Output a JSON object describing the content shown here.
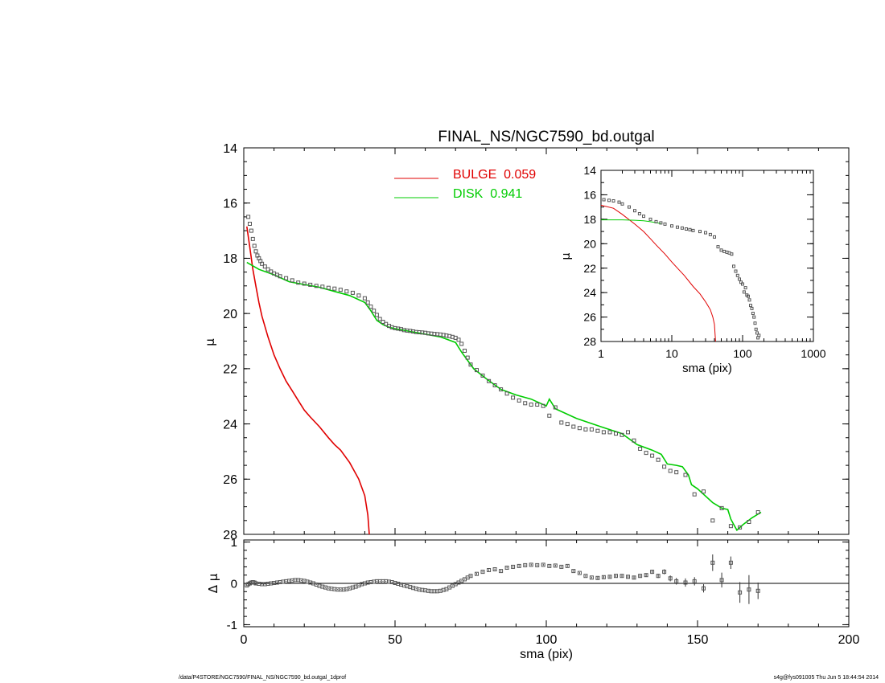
{
  "chart_data": [
    {
      "type": "scatter",
      "title": "FINAL_NS/NGC7590_bd.outgal",
      "xlabel": "",
      "ylabel": "μ",
      "xlim": [
        0,
        200
      ],
      "ylim": [
        28,
        14
      ],
      "xticks": [
        0,
        50,
        100,
        150,
        200
      ],
      "yticks": [
        14,
        16,
        18,
        20,
        22,
        24,
        26,
        28
      ],
      "legend_position": "top-center",
      "series": [
        {
          "name": "BULGE  0.059",
          "kind": "line",
          "color": "#e00000",
          "x": [
            1,
            2,
            3,
            4,
            5,
            6,
            8,
            10,
            12,
            14,
            16,
            18,
            20,
            22,
            25,
            28,
            30,
            32,
            35,
            38,
            40,
            41,
            41.5
          ],
          "y": [
            16.85,
            17.6,
            18.4,
            19.0,
            19.6,
            20.1,
            20.85,
            21.5,
            22.0,
            22.45,
            22.8,
            23.15,
            23.5,
            23.75,
            24.1,
            24.5,
            24.75,
            24.95,
            25.4,
            26.0,
            26.6,
            27.3,
            28.0
          ]
        },
        {
          "name": "DISK  0.941",
          "kind": "line",
          "color": "#00cc00",
          "x": [
            1,
            5,
            10,
            15,
            20,
            25,
            30,
            35,
            40,
            42,
            44,
            46,
            48,
            50,
            55,
            60,
            65,
            70,
            72,
            74,
            76,
            80,
            85,
            90,
            95,
            100,
            101,
            103,
            110,
            118,
            125,
            130,
            135,
            138,
            140,
            143,
            145,
            147,
            148,
            150,
            155,
            158,
            160,
            161,
            162,
            163,
            165,
            168,
            171
          ],
          "y": [
            18.15,
            18.4,
            18.6,
            18.85,
            18.95,
            19.05,
            19.2,
            19.35,
            19.6,
            19.9,
            20.25,
            20.4,
            20.5,
            20.55,
            20.65,
            20.75,
            20.85,
            21.05,
            21.4,
            21.7,
            22.0,
            22.35,
            22.75,
            22.95,
            23.1,
            23.35,
            23.1,
            23.45,
            23.8,
            24.1,
            24.35,
            24.75,
            24.95,
            25.1,
            25.45,
            25.5,
            25.55,
            25.85,
            26.2,
            26.35,
            26.85,
            27.05,
            27.1,
            27.45,
            27.65,
            27.85,
            27.65,
            27.4,
            27.2
          ]
        },
        {
          "name": "",
          "kind": "markers",
          "color": "#555555",
          "x": [
            1.5,
            2,
            2.5,
            3,
            3.5,
            4,
            4.5,
            5,
            5.5,
            6,
            7,
            8,
            9,
            10,
            11,
            12,
            14,
            16,
            18,
            20,
            22,
            24,
            26,
            28,
            30,
            32,
            34,
            36,
            38,
            40,
            41,
            42,
            43,
            44,
            45,
            46,
            47,
            48,
            49,
            50,
            51,
            52,
            53,
            54,
            55,
            56,
            57,
            58,
            59,
            60,
            61,
            62,
            63,
            64,
            65,
            66,
            67,
            68,
            69,
            70,
            71,
            72,
            73,
            74,
            75,
            77,
            79,
            81,
            83,
            85,
            87,
            89,
            91,
            93,
            95,
            97,
            99,
            101,
            103,
            105,
            107,
            109,
            111,
            113,
            115,
            117,
            119,
            121,
            123,
            125,
            127,
            129,
            131,
            133,
            135,
            137,
            139,
            141,
            143,
            146,
            149,
            152,
            155,
            158,
            161,
            164,
            167,
            170
          ],
          "y": [
            16.5,
            16.75,
            17.0,
            17.3,
            17.55,
            17.75,
            17.9,
            18.0,
            18.1,
            18.2,
            18.3,
            18.4,
            18.48,
            18.55,
            18.6,
            18.65,
            18.72,
            18.8,
            18.88,
            18.92,
            18.96,
            19.0,
            19.03,
            19.07,
            19.1,
            19.14,
            19.2,
            19.25,
            19.35,
            19.45,
            19.6,
            19.75,
            19.9,
            20.05,
            20.2,
            20.3,
            20.38,
            20.45,
            20.5,
            20.53,
            20.55,
            20.57,
            20.6,
            20.62,
            20.63,
            20.65,
            20.67,
            20.68,
            20.69,
            20.7,
            20.72,
            20.73,
            20.74,
            20.75,
            20.76,
            20.78,
            20.8,
            20.82,
            20.85,
            20.88,
            20.95,
            21.1,
            21.35,
            21.6,
            21.85,
            22.05,
            22.25,
            22.45,
            22.6,
            22.75,
            22.9,
            23.05,
            23.15,
            23.25,
            23.3,
            23.3,
            23.35,
            23.7,
            23.4,
            23.95,
            24.0,
            24.1,
            24.15,
            24.2,
            24.2,
            24.25,
            24.3,
            24.3,
            24.35,
            24.4,
            24.3,
            24.6,
            24.9,
            25.05,
            25.15,
            25.3,
            25.55,
            25.7,
            25.75,
            25.85,
            26.55,
            26.45,
            27.5,
            27.05,
            27.7,
            27.75,
            27.55,
            27.2
          ]
        }
      ]
    },
    {
      "type": "scatter",
      "title": "",
      "xlabel": "sma (pix)",
      "ylabel": "μ",
      "xscale": "log",
      "xlim": [
        1,
        1000
      ],
      "ylim": [
        28,
        14
      ],
      "xticks": [
        1,
        10,
        100,
        1000
      ],
      "yticks": [
        14,
        16,
        18,
        20,
        22,
        24,
        26,
        28
      ],
      "series": [
        {
          "name": "",
          "kind": "line",
          "color": "#e00000",
          "x": [
            1,
            1.5,
            2,
            3,
            4,
            5,
            6,
            8,
            10,
            12,
            15,
            20,
            25,
            28,
            30,
            35,
            38,
            40,
            41.5
          ],
          "y": [
            16.85,
            17.1,
            17.6,
            18.4,
            19.0,
            19.6,
            20.1,
            20.85,
            21.5,
            22.0,
            22.6,
            23.5,
            24.1,
            24.5,
            24.75,
            25.4,
            26.0,
            26.6,
            28.0
          ]
        },
        {
          "name": "",
          "kind": "line",
          "color": "#00cc00",
          "x": [
            1,
            2,
            3,
            4,
            5,
            7
          ],
          "y": [
            18.05,
            18.05,
            18.08,
            18.12,
            18.2,
            18.35
          ]
        },
        {
          "name": "",
          "kind": "markers",
          "color": "#555555",
          "x": [
            1.1,
            1.3,
            1.5,
            1.8,
            2,
            2.5,
            3,
            3.5,
            4,
            5,
            6,
            7,
            8,
            10,
            12,
            14,
            16,
            18,
            20,
            25,
            30,
            35,
            40,
            45,
            50,
            55,
            60,
            65,
            70,
            75,
            80,
            85,
            90,
            95,
            100,
            105,
            110,
            115,
            120,
            125,
            130,
            135,
            140,
            145,
            150,
            155,
            160,
            165,
            170
          ],
          "y": [
            16.4,
            16.45,
            16.5,
            16.6,
            16.75,
            17.0,
            17.3,
            17.55,
            17.75,
            18.0,
            18.2,
            18.3,
            18.4,
            18.55,
            18.65,
            18.72,
            18.8,
            18.85,
            18.92,
            19.0,
            19.1,
            19.25,
            19.45,
            20.25,
            20.53,
            20.63,
            20.7,
            20.76,
            20.85,
            21.85,
            22.25,
            22.6,
            22.9,
            23.15,
            23.3,
            23.95,
            23.6,
            24.2,
            24.3,
            24.6,
            25.05,
            25.3,
            25.7,
            26.0,
            26.5,
            27.0,
            27.3,
            27.7,
            27.5
          ]
        }
      ]
    },
    {
      "type": "scatter",
      "title": "",
      "xlabel": "sma (pix)",
      "ylabel": "Δ μ",
      "xlim": [
        0,
        200
      ],
      "ylim": [
        -1.05,
        1.05
      ],
      "xticks": [
        0,
        50,
        100,
        150,
        200
      ],
      "yticks": [
        -1,
        0,
        1
      ],
      "reference_line": 0,
      "series": [
        {
          "name": "",
          "kind": "markers_with_errors",
          "color": "#555555",
          "x": [
            1,
            1.5,
            2,
            2.5,
            3,
            3.5,
            4,
            5,
            6,
            7,
            8,
            9,
            10,
            11,
            12,
            13,
            14,
            15,
            16,
            17,
            18,
            19,
            20,
            21,
            22,
            23,
            24,
            25,
            26,
            27,
            28,
            29,
            30,
            31,
            32,
            33,
            34,
            35,
            36,
            37,
            38,
            39,
            40,
            41,
            42,
            43,
            44,
            45,
            46,
            47,
            48,
            49,
            50,
            51,
            52,
            53,
            54,
            55,
            56,
            57,
            58,
            59,
            60,
            61,
            62,
            63,
            64,
            65,
            66,
            67,
            68,
            69,
            70,
            71,
            72,
            73,
            74,
            75,
            77,
            79,
            81,
            83,
            85,
            87,
            89,
            91,
            93,
            95,
            97,
            99,
            101,
            103,
            105,
            107,
            109,
            111,
            113,
            115,
            117,
            119,
            121,
            123,
            125,
            127,
            129,
            131,
            133,
            135,
            137,
            139,
            141,
            143,
            146,
            149,
            152,
            155,
            158,
            161,
            164,
            167,
            170
          ],
          "y": [
            -0.05,
            -0.02,
            0.0,
            0.02,
            0.03,
            0.02,
            0.0,
            -0.01,
            -0.02,
            -0.02,
            -0.01,
            0.0,
            0.01,
            0.02,
            0.03,
            0.04,
            0.05,
            0.06,
            0.07,
            0.08,
            0.08,
            0.07,
            0.06,
            0.04,
            0.02,
            0.0,
            -0.03,
            -0.06,
            -0.08,
            -0.1,
            -0.12,
            -0.13,
            -0.14,
            -0.15,
            -0.15,
            -0.15,
            -0.14,
            -0.12,
            -0.1,
            -0.08,
            -0.05,
            -0.02,
            0.0,
            0.02,
            0.03,
            0.04,
            0.05,
            0.05,
            0.05,
            0.05,
            0.04,
            0.03,
            0.01,
            -0.01,
            -0.03,
            -0.05,
            -0.07,
            -0.09,
            -0.11,
            -0.13,
            -0.15,
            -0.16,
            -0.17,
            -0.18,
            -0.19,
            -0.19,
            -0.19,
            -0.18,
            -0.16,
            -0.14,
            -0.1,
            -0.06,
            -0.02,
            0.02,
            0.06,
            0.1,
            0.14,
            0.18,
            0.23,
            0.28,
            0.32,
            0.34,
            0.3,
            0.38,
            0.4,
            0.42,
            0.44,
            0.45,
            0.44,
            0.45,
            0.42,
            0.43,
            0.4,
            0.42,
            0.3,
            0.25,
            0.18,
            0.14,
            0.13,
            0.15,
            0.16,
            0.18,
            0.18,
            0.16,
            0.14,
            0.18,
            0.2,
            0.28,
            0.18,
            0.28,
            0.12,
            0.05,
            0.02,
            0.05,
            -0.12,
            0.5,
            0.08,
            0.5,
            -0.22,
            -0.15,
            -0.18
          ],
          "err": [
            0.01,
            0.01,
            0.01,
            0.01,
            0.01,
            0.01,
            0.01,
            0.01,
            0.01,
            0.01,
            0.01,
            0.01,
            0.01,
            0.01,
            0.01,
            0.01,
            0.01,
            0.01,
            0.01,
            0.01,
            0.01,
            0.01,
            0.01,
            0.01,
            0.01,
            0.01,
            0.01,
            0.01,
            0.01,
            0.01,
            0.01,
            0.01,
            0.01,
            0.01,
            0.01,
            0.01,
            0.01,
            0.01,
            0.01,
            0.01,
            0.01,
            0.01,
            0.01,
            0.01,
            0.01,
            0.01,
            0.01,
            0.01,
            0.01,
            0.01,
            0.01,
            0.01,
            0.01,
            0.01,
            0.01,
            0.01,
            0.01,
            0.01,
            0.01,
            0.01,
            0.01,
            0.01,
            0.01,
            0.01,
            0.01,
            0.01,
            0.01,
            0.01,
            0.01,
            0.01,
            0.01,
            0.01,
            0.01,
            0.01,
            0.01,
            0.01,
            0.01,
            0.02,
            0.02,
            0.02,
            0.02,
            0.02,
            0.02,
            0.02,
            0.02,
            0.02,
            0.02,
            0.02,
            0.02,
            0.02,
            0.02,
            0.02,
            0.02,
            0.02,
            0.02,
            0.02,
            0.02,
            0.02,
            0.03,
            0.03,
            0.03,
            0.03,
            0.03,
            0.03,
            0.03,
            0.03,
            0.04,
            0.05,
            0.05,
            0.06,
            0.07,
            0.08,
            0.1,
            0.1,
            0.1,
            0.2,
            0.18,
            0.15,
            0.25,
            0.35,
            0.2
          ]
        }
      ]
    }
  ],
  "footer": {
    "path": "/data/P4STORE/NGC7590/FINAL_NS/NGC7590_bd.outgal_1dprof",
    "stamp": "s4g@fys091005  Thu Jun  5 18:44:54 2014"
  }
}
